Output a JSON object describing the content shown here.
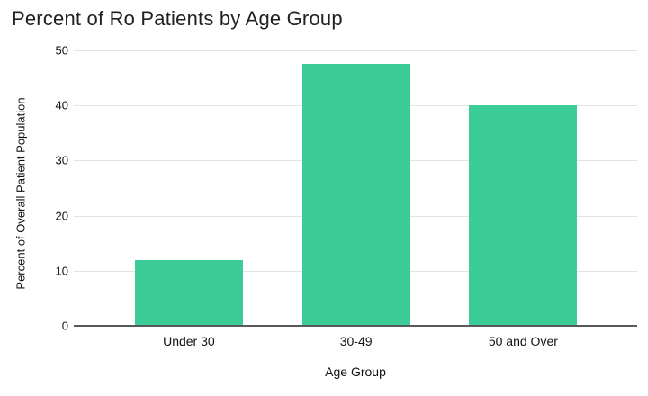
{
  "chart_data": {
    "type": "bar",
    "title": "Percent of Ro Patients by Age Group",
    "categories": [
      "Under 30",
      "30-49",
      "50 and Over"
    ],
    "values": [
      12,
      47.5,
      40
    ],
    "xlabel": "Age Group",
    "ylabel": "Percent of Overall Patient Population",
    "ylim": [
      0,
      50
    ],
    "yticks": [
      0,
      10,
      20,
      30,
      40,
      50
    ],
    "grid": true,
    "legend": false,
    "bar_color": "#3bcc97"
  },
  "colors": {
    "bar": "#3bcc97",
    "title": "#212121",
    "axis_text": "#111111",
    "gridline": "#e3e3e3",
    "baseline": "#58595b",
    "background": "#ffffff"
  }
}
